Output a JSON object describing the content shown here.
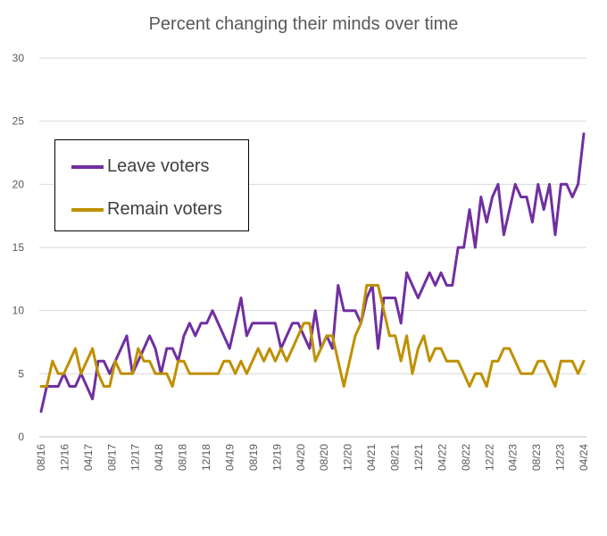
{
  "chart_data": {
    "type": "line",
    "title": "Percent changing their minds over time",
    "xlabel": "",
    "ylabel": "",
    "ylim": [
      0,
      30
    ],
    "y_ticks": [
      0,
      5,
      10,
      15,
      20,
      25,
      30
    ],
    "x_tick_labels": [
      "08/16",
      "12/16",
      "04/17",
      "08/17",
      "12/17",
      "04/18",
      "08/18",
      "12/18",
      "04/19",
      "08/19",
      "12/19",
      "04/20",
      "08/20",
      "12/20",
      "04/21",
      "08/21",
      "12/21",
      "04/22",
      "08/22",
      "12/22",
      "04/23",
      "08/23",
      "12/23",
      "04/24"
    ],
    "legend_position": "upper-left",
    "series": [
      {
        "name": "Leave voters",
        "color": "#7030a0",
        "values": [
          2,
          4,
          4,
          4,
          5,
          4,
          4,
          5,
          4,
          3,
          6,
          6,
          5,
          6,
          7,
          8,
          5,
          6,
          7,
          8,
          7,
          5,
          7,
          7,
          6,
          8,
          9,
          8,
          9,
          9,
          10,
          9,
          8,
          7,
          9,
          11,
          8,
          9,
          9,
          9,
          9,
          9,
          7,
          8,
          9,
          9,
          8,
          7,
          10,
          7,
          8,
          7,
          12,
          10,
          10,
          10,
          9,
          11,
          12,
          7,
          11,
          11,
          11,
          9,
          13,
          12,
          11,
          12,
          13,
          12,
          13,
          12,
          12,
          15,
          15,
          18,
          15,
          19,
          17,
          19,
          20,
          16,
          18,
          20,
          19,
          19,
          17,
          20,
          18,
          20,
          16,
          20,
          20,
          19,
          20,
          24
        ]
      },
      {
        "name": "Remain voters",
        "color": "#bf9000",
        "values": [
          4,
          4,
          6,
          5,
          5,
          6,
          7,
          5,
          6,
          7,
          5,
          4,
          4,
          6,
          5,
          5,
          5,
          7,
          6,
          6,
          5,
          5,
          5,
          4,
          6,
          6,
          5,
          5,
          5,
          5,
          5,
          5,
          6,
          6,
          5,
          6,
          5,
          6,
          7,
          6,
          7,
          6,
          7,
          6,
          7,
          8,
          9,
          9,
          6,
          7,
          8,
          8,
          6,
          4,
          6,
          8,
          9,
          12,
          12,
          12,
          10,
          8,
          8,
          6,
          8,
          5,
          7,
          8,
          6,
          7,
          7,
          6,
          6,
          6,
          5,
          4,
          5,
          5,
          4,
          6,
          6,
          7,
          7,
          6,
          5,
          5,
          5,
          6,
          6,
          5,
          4,
          6,
          6,
          6,
          5,
          6
        ]
      }
    ]
  }
}
